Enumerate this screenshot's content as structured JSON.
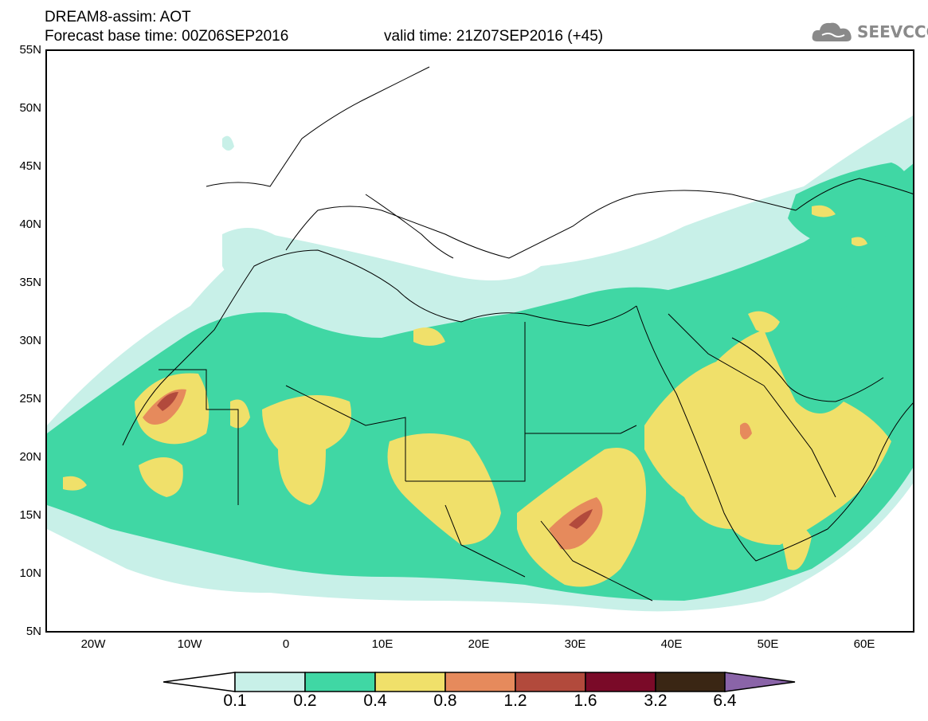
{
  "header": {
    "line1": "DREAM8-assim: AOT",
    "line2": "Forecast base time: 00Z06SEP2016",
    "valid": "valid time: 21Z07SEP2016 (+45)"
  },
  "logo": {
    "text": "SEEVCCC",
    "icon": "cloud-icon",
    "color": "#8a8a8a"
  },
  "map": {
    "projection": "lat-lon",
    "lon_range": [
      -25,
      65
    ],
    "lat_range": [
      5,
      55
    ],
    "y_ticks": [
      "55N",
      "50N",
      "45N",
      "40N",
      "35N",
      "30N",
      "25N",
      "20N",
      "15N",
      "10N",
      "5N"
    ],
    "x_ticks": [
      "20W",
      "10W",
      "0",
      "10E",
      "20E",
      "30E",
      "40E",
      "50E",
      "60E"
    ],
    "variable": "AOT",
    "colors": {
      "0.1-0.2": "#c8f0e8",
      "0.2-0.4": "#40d7a4",
      "0.4-0.8": "#f0e06a",
      "0.8-1.2": "#e68a5c",
      "1.2-1.6": "#b24a3c",
      "1.6-3.2": "#7a0a28",
      "3.2-6.4": "#3a2614",
      ">6.4": "#8a64a8"
    }
  },
  "colorbar": {
    "labels": [
      "0.1",
      "0.2",
      "0.4",
      "0.8",
      "1.2",
      "1.6",
      "3.2",
      "6.4"
    ],
    "colors": [
      "#c8f0e8",
      "#40d7a4",
      "#f0e06a",
      "#e68a5c",
      "#b24a3c",
      "#7a0a28",
      "#3a2614"
    ],
    "low_color": "#ffffff",
    "high_color": "#8a64a8"
  }
}
